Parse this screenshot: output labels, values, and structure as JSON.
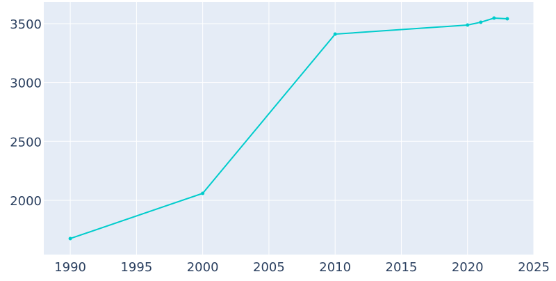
{
  "chart_data": {
    "type": "line",
    "x": [
      1990,
      2000,
      2010,
      2020,
      2021,
      2022,
      2023
    ],
    "series": [
      {
        "color": "#00cccc",
        "values": [
          1675,
          2059,
          3411,
          3488,
          3512,
          3547,
          3541
        ]
      }
    ],
    "xlim": [
      1988,
      2025
    ],
    "xticks": [
      1990,
      1995,
      2000,
      2005,
      2010,
      2015,
      2020,
      2025
    ],
    "ylim": [
      1539,
      3683
    ],
    "yticks": [
      2000,
      2500,
      3000,
      3500
    ],
    "grid": true
  }
}
